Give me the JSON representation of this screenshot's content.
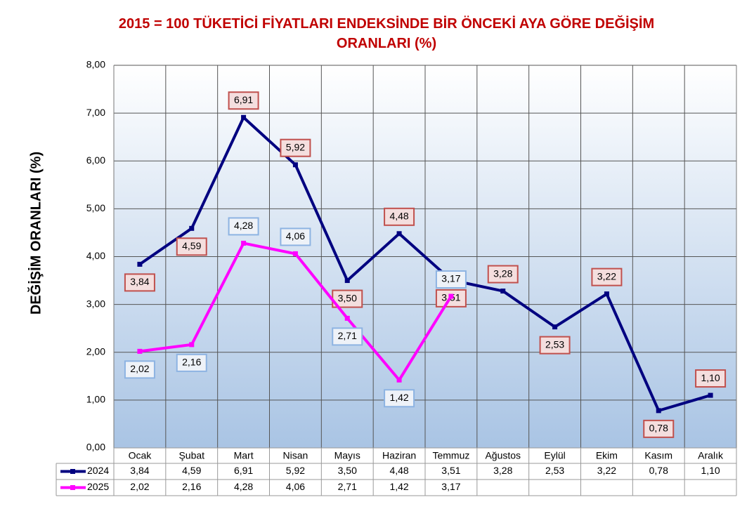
{
  "chart_data": {
    "type": "line",
    "title": "2015 = 100 TÜKETİCİ FİYATLARI ENDEKSİNDE BİR ÖNCEKİ AYA GÖRE DEĞİŞİM ORANLARI (%)",
    "y_label": "DEĞİŞİM ORANLARI (%)",
    "categories": [
      "Ocak",
      "Şubat",
      "Mart",
      "Nisan",
      "Mayıs",
      "Haziran",
      "Temmuz",
      "Ağustos",
      "Eylül",
      "Ekim",
      "Kasım",
      "Aralık"
    ],
    "series": [
      {
        "name": "2024",
        "color": "#000080",
        "values": [
          3.84,
          4.59,
          6.91,
          5.92,
          3.5,
          4.48,
          3.51,
          3.28,
          2.53,
          3.22,
          0.78,
          1.1
        ],
        "value_labels": [
          "3,84",
          "4,59",
          "6,91",
          "5,92",
          "3,50",
          "4,48",
          "3,51",
          "3,28",
          "2,53",
          "3,22",
          "0,78",
          "1,10"
        ]
      },
      {
        "name": "2025",
        "color": "#ff00ff",
        "values": [
          2.02,
          2.16,
          4.28,
          4.06,
          2.71,
          1.42,
          3.17,
          null,
          null,
          null,
          null,
          null
        ],
        "value_labels": [
          "2,02",
          "2,16",
          "4,28",
          "4,06",
          "2,71",
          "1,42",
          "3,17",
          null,
          null,
          null,
          null,
          null
        ]
      }
    ],
    "ylim": [
      0,
      8
    ],
    "yticks": [
      {
        "value": 0,
        "label": "0,00"
      },
      {
        "value": 1,
        "label": "1,00"
      },
      {
        "value": 2,
        "label": "2,00"
      },
      {
        "value": 3,
        "label": "3,00"
      },
      {
        "value": 4,
        "label": "4,00"
      },
      {
        "value": 5,
        "label": "5,00"
      },
      {
        "value": 6,
        "label": "6,00"
      },
      {
        "value": 7,
        "label": "7,00"
      },
      {
        "value": 8,
        "label": "8,00"
      }
    ],
    "grid": true
  }
}
